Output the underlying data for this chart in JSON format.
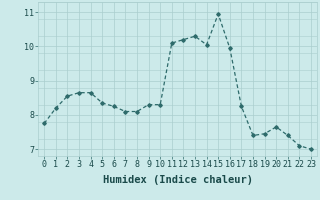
{
  "x": [
    0,
    1,
    2,
    3,
    4,
    5,
    6,
    7,
    8,
    9,
    10,
    11,
    12,
    13,
    14,
    15,
    16,
    17,
    18,
    19,
    20,
    21,
    22,
    23
  ],
  "y": [
    7.75,
    8.2,
    8.55,
    8.65,
    8.65,
    8.35,
    8.25,
    8.1,
    8.1,
    8.3,
    8.3,
    10.1,
    10.2,
    10.3,
    10.05,
    10.95,
    9.95,
    8.25,
    7.4,
    7.45,
    7.65,
    7.4,
    7.1,
    7.0
  ],
  "line_color": "#2e6b6b",
  "marker": "D",
  "markersize": 1.8,
  "linewidth": 0.9,
  "bg_color": "#cceaea",
  "grid_color_major": "#aacece",
  "grid_color_minor": "#bbdddd",
  "xlabel": "Humidex (Indice chaleur)",
  "ylim": [
    6.8,
    11.3
  ],
  "xlim": [
    -0.5,
    23.5
  ],
  "yticks": [
    7,
    8,
    9,
    10,
    11
  ],
  "xticks": [
    0,
    1,
    2,
    3,
    4,
    5,
    6,
    7,
    8,
    9,
    10,
    11,
    12,
    13,
    14,
    15,
    16,
    17,
    18,
    19,
    20,
    21,
    22,
    23
  ],
  "tick_labelsize": 6,
  "xlabel_fontsize": 7.5
}
